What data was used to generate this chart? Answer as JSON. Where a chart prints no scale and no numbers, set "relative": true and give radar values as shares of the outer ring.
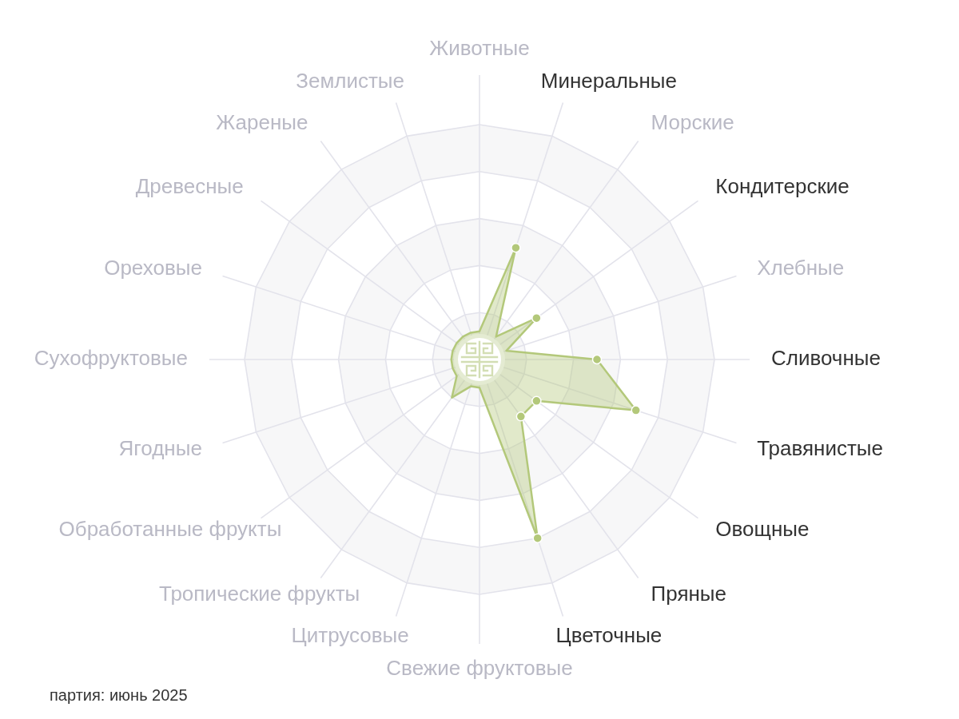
{
  "chart_data": {
    "type": "radar",
    "relative": true,
    "grid": true,
    "marker": "circle",
    "categories": [
      "Животные",
      "Минеральные",
      "Морские",
      "Кондитерские",
      "Хлебные",
      "Сливочные",
      "Травянистые",
      "Овощные",
      "Пряные",
      "Цветочные",
      "Свежие фруктовые",
      "Цитрусовые",
      "Тропические фрукты",
      "Обработанные фрукты",
      "Ягодные",
      "Сухофруктовые",
      "Ореховые",
      "Древесные",
      "Жареные",
      "Землистые"
    ],
    "series": [
      {
        "color": "#b3c87a",
        "values": [
          0.12,
          0.5,
          0.12,
          0.3,
          0.12,
          0.5,
          0.7,
          0.3,
          0.3,
          0.8,
          0.12,
          0.12,
          0.2,
          0.12,
          0.12,
          0.12,
          0.12,
          0.12,
          0.12,
          0.12
        ]
      }
    ],
    "annotations": [
      "партия: июнь 2025"
    ]
  }
}
